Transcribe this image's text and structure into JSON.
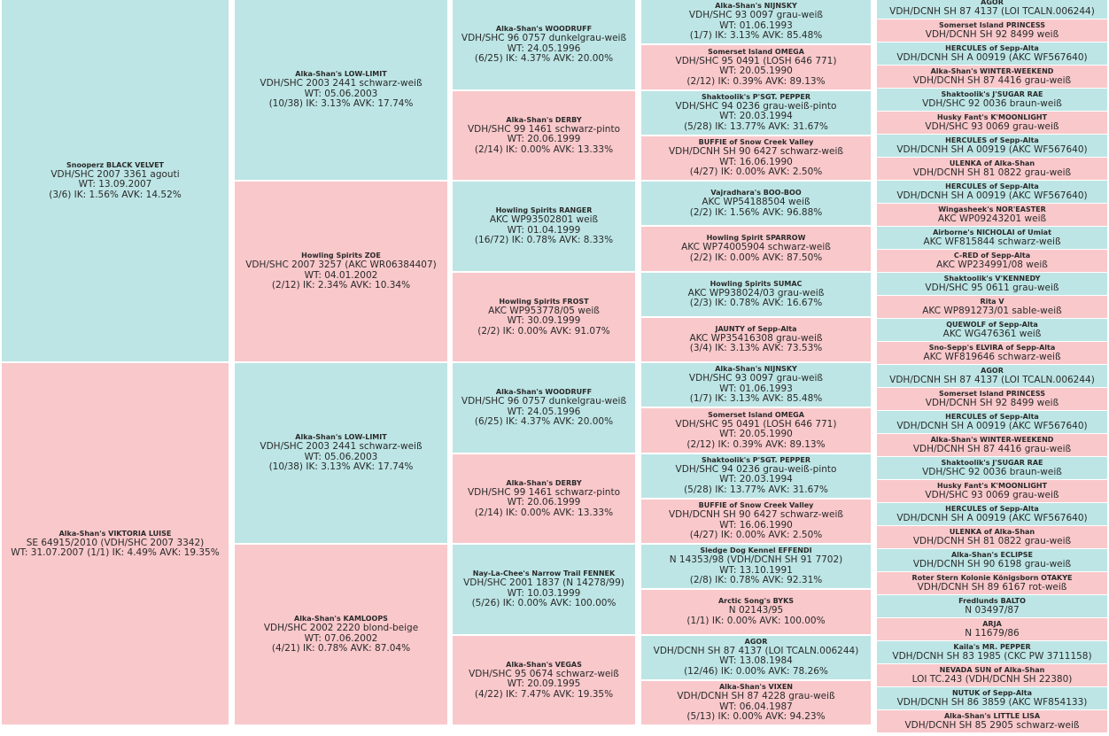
{
  "colors": {
    "male": "#bde5e5",
    "female": "#f9c8cb"
  },
  "gen0": [
    {
      "sex": "m",
      "name": "Snooperz BLACK VELVET",
      "lines": [
        "VDH/SHC 2007 3361   agouti",
        "WT: 13.09.2007",
        "(3/6) IK: 1.56%  AVK: 14.52%"
      ]
    },
    {
      "sex": "f",
      "name": "Alka-Shan's VIKTORIA LUISE",
      "lines": [
        "SE 64915/2010 (VDH/SHC 2007 3342)",
        "WT: 31.07.2007 (1/1) IK: 4.49%  AVK: 19.35%"
      ]
    }
  ],
  "gen1": [
    {
      "sex": "m",
      "name": "Alka-Shan's LOW-LIMIT",
      "lines": [
        "VDH/SHC 2003 2441   schwarz-weiß",
        "WT: 05.06.2003",
        "(10/38) IK: 3.13%  AVK: 17.74%"
      ]
    },
    {
      "sex": "f",
      "name": "Howling Spirits ZOE",
      "lines": [
        "VDH/SHC 2007 3257 (AKC WR06384407)",
        "WT: 04.01.2002",
        "(2/12) IK: 2.34%  AVK: 10.34%"
      ]
    },
    {
      "sex": "m",
      "name": "Alka-Shan's LOW-LIMIT",
      "lines": [
        "VDH/SHC 2003 2441   schwarz-weiß",
        "WT: 05.06.2003",
        "(10/38) IK: 3.13%  AVK: 17.74%"
      ]
    },
    {
      "sex": "f",
      "name": "Alka-Shan's KAMLOOPS",
      "lines": [
        "VDH/SHC 2002 2220   blond-beige",
        "WT: 07.06.2002",
        "(4/21) IK: 0.78%  AVK: 87.04%"
      ]
    }
  ],
  "gen2": [
    {
      "sex": "m",
      "name": "Alka-Shan's WOODRUFF",
      "lines": [
        "VDH/SHC 96 0757   dunkelgrau-weiß",
        "WT: 24.05.1996",
        "(6/25) IK: 4.37%  AVK: 20.00%"
      ]
    },
    {
      "sex": "f",
      "name": "Alka-Shan's DERBY",
      "lines": [
        "VDH/SHC 99 1461   schwarz-pinto",
        "WT: 20.06.1999",
        "(2/14) IK: 0.00%  AVK: 13.33%"
      ]
    },
    {
      "sex": "m",
      "name": "Howling Spirits RANGER",
      "lines": [
        "AKC WP93502801   weiß",
        "WT: 01.04.1999",
        "(16/72) IK: 0.78%  AVK: 8.33%"
      ]
    },
    {
      "sex": "f",
      "name": "Howling Spirits FROST",
      "lines": [
        "AKC WP953778/05   weiß",
        "WT: 30.09.1999",
        "(2/2) IK: 0.00%  AVK: 91.07%"
      ]
    },
    {
      "sex": "m",
      "name": "Alka-Shan's WOODRUFF",
      "lines": [
        "VDH/SHC 96 0757   dunkelgrau-weiß",
        "WT: 24.05.1996",
        "(6/25) IK: 4.37%  AVK: 20.00%"
      ]
    },
    {
      "sex": "f",
      "name": "Alka-Shan's DERBY",
      "lines": [
        "VDH/SHC 99 1461   schwarz-pinto",
        "WT: 20.06.1999",
        "(2/14) IK: 0.00%  AVK: 13.33%"
      ]
    },
    {
      "sex": "m",
      "name": "Nay-La-Chee's Narrow Trail FENNEK",
      "lines": [
        "VDH/SHC 2001 1837 (N 14278/99)",
        "WT: 10.03.1999",
        "(5/26) IK: 0.00%  AVK: 100.00%"
      ]
    },
    {
      "sex": "f",
      "name": "Alka-Shan's VEGAS",
      "lines": [
        "VDH/SHC 95 0674   schwarz-weiß",
        "WT: 20.09.1995",
        "(4/22) IK: 7.47%  AVK: 19.35%"
      ]
    }
  ],
  "gen3": [
    {
      "sex": "m",
      "name": "Alka-Shan's NIJNSKY",
      "lines": [
        "VDH/SHC 93 0097   grau-weiß",
        "WT: 01.06.1993",
        "(1/7) IK: 3.13%  AVK: 85.48%"
      ]
    },
    {
      "sex": "f",
      "name": "Somerset Island OMEGA",
      "lines": [
        "VDH/SHC 95 0491 (LOSH 646 771)",
        "WT: 20.05.1990",
        "(2/12) IK: 0.39%  AVK: 89.13%"
      ]
    },
    {
      "sex": "m",
      "name": "Shaktoolik's P'SGT. PEPPER",
      "lines": [
        "VDH/SHC 94 0236   grau-weiß-pinto",
        "WT: 20.03.1994",
        "(5/28) IK: 13.77%  AVK: 31.67%"
      ]
    },
    {
      "sex": "f",
      "name": "BUFFIE of Snow Creek Valley",
      "lines": [
        "VDH/DCNH SH 90 6427   schwarz-weiß",
        "WT: 16.06.1990",
        "(4/27) IK: 0.00%  AVK: 2.50%"
      ]
    },
    {
      "sex": "m",
      "name": "Vajradhara's BOO-BOO",
      "lines": [
        "AKC WP54188504   weiß",
        "(2/2) IK: 1.56%  AVK: 96.88%"
      ]
    },
    {
      "sex": "f",
      "name": "Howling Spirit SPARROW",
      "lines": [
        "AKC WP74005904   schwarz-weiß",
        "(2/2) IK: 0.00%  AVK: 87.50%"
      ]
    },
    {
      "sex": "m",
      "name": "Howling Spirits SUMAC",
      "lines": [
        "AKC WP938024/03   grau-weiß",
        "(2/3) IK: 0.78%  AVK: 16.67%"
      ]
    },
    {
      "sex": "f",
      "name": "JAUNTY of Sepp-Alta",
      "lines": [
        "AKC WP35416308   grau-weiß",
        "(3/4) IK: 3.13%  AVK: 73.53%"
      ]
    },
    {
      "sex": "m",
      "name": "Alka-Shan's NIJNSKY",
      "lines": [
        "VDH/SHC 93 0097   grau-weiß",
        "WT: 01.06.1993",
        "(1/7) IK: 3.13%  AVK: 85.48%"
      ]
    },
    {
      "sex": "f",
      "name": "Somerset Island OMEGA",
      "lines": [
        "VDH/SHC 95 0491 (LOSH 646 771)",
        "WT: 20.05.1990",
        "(2/12) IK: 0.39%  AVK: 89.13%"
      ]
    },
    {
      "sex": "m",
      "name": "Shaktoolik's P'SGT. PEPPER",
      "lines": [
        "VDH/SHC 94 0236   grau-weiß-pinto",
        "WT: 20.03.1994",
        "(5/28) IK: 13.77%  AVK: 31.67%"
      ]
    },
    {
      "sex": "f",
      "name": "BUFFIE of Snow Creek Valley",
      "lines": [
        "VDH/DCNH SH 90 6427   schwarz-weiß",
        "WT: 16.06.1990",
        "(4/27) IK: 0.00%  AVK: 2.50%"
      ]
    },
    {
      "sex": "m",
      "name": "Sledge Dog Kennel EFFENDI",
      "lines": [
        "N 14353/98 (VDH/DCNH SH 91 7702)",
        "WT: 13.10.1991",
        "(2/8) IK: 0.78%  AVK: 92.31%"
      ]
    },
    {
      "sex": "f",
      "name": "Arctic Song's BYKS",
      "lines": [
        "N  02143/95",
        "(1/1) IK: 0.00%  AVK: 100.00%"
      ]
    },
    {
      "sex": "m",
      "name": "AGOR",
      "lines": [
        "VDH/DCNH SH 87 4137 (LOI TCALN.006244)",
        "WT: 13.08.1984",
        "(12/46) IK: 0.00%  AVK: 78.26%"
      ]
    },
    {
      "sex": "f",
      "name": "Alka-Shan's VIXEN",
      "lines": [
        "VDH/DCNH SH 87 4228   grau-weiß",
        "WT: 06.04.1987",
        "(5/13) IK: 0.00%  AVK: 94.23%"
      ]
    }
  ],
  "gen4": [
    {
      "sex": "m",
      "name": "AGOR",
      "lines": [
        "VDH/DCNH SH 87 4137 (LOI TCALN.006244)"
      ]
    },
    {
      "sex": "f",
      "name": "Somerset Island PRINCESS",
      "lines": [
        "VDH/DCNH SH 92 8499   weiß"
      ]
    },
    {
      "sex": "m",
      "name": "HERCULES of Sepp-Alta",
      "lines": [
        "VDH/DCNH SH A 00919 (AKC WF567640)"
      ]
    },
    {
      "sex": "f",
      "name": "Alka-Shan's WINTER-WEEKEND",
      "lines": [
        "VDH/DCNH SH 87 4416   grau-weiß"
      ]
    },
    {
      "sex": "m",
      "name": "Shaktoolik's J'SUGAR RAE",
      "lines": [
        "VDH/SHC 92 0036   braun-weiß"
      ]
    },
    {
      "sex": "f",
      "name": "Husky Fant's K'MOONLIGHT",
      "lines": [
        "VDH/SHC 93 0069   grau-weiß"
      ]
    },
    {
      "sex": "m",
      "name": "HERCULES of Sepp-Alta",
      "lines": [
        "VDH/DCNH SH A 00919 (AKC WF567640)"
      ]
    },
    {
      "sex": "f",
      "name": "ULENKA of Alka-Shan",
      "lines": [
        "VDH/DCNH SH 81 0822   grau-weiß"
      ]
    },
    {
      "sex": "m",
      "name": "HERCULES of Sepp-Alta",
      "lines": [
        "VDH/DCNH SH A 00919 (AKC WF567640)"
      ]
    },
    {
      "sex": "f",
      "name": "Wingasheek's NOR'EASTER",
      "lines": [
        "AKC WP09243201   weiß"
      ]
    },
    {
      "sex": "m",
      "name": "Airborne's NICHOLAI of Umiat",
      "lines": [
        "AKC WF815844   schwarz-weiß"
      ]
    },
    {
      "sex": "f",
      "name": "C-RED of Sepp-Alta",
      "lines": [
        "AKC WP234991/08   weiß"
      ]
    },
    {
      "sex": "m",
      "name": "Shaktoolik's V'KENNEDY",
      "lines": [
        "VDH/SHC 95 0611   grau-weiß"
      ]
    },
    {
      "sex": "f",
      "name": "Rita V",
      "lines": [
        "AKC WP891273/01   sable-weiß"
      ]
    },
    {
      "sex": "m",
      "name": "QUEWOLF of Sepp-Alta",
      "lines": [
        "AKC WG476361   weiß"
      ]
    },
    {
      "sex": "f",
      "name": "Sno-Sepp's ELVIRA of Sepp-Alta",
      "lines": [
        "AKC WF819646   schwarz-weiß"
      ]
    },
    {
      "sex": "m",
      "name": "AGOR",
      "lines": [
        "VDH/DCNH SH 87 4137 (LOI TCALN.006244)"
      ]
    },
    {
      "sex": "f",
      "name": "Somerset Island PRINCESS",
      "lines": [
        "VDH/DCNH SH 92 8499   weiß"
      ]
    },
    {
      "sex": "m",
      "name": "HERCULES of Sepp-Alta",
      "lines": [
        "VDH/DCNH SH A 00919 (AKC WF567640)"
      ]
    },
    {
      "sex": "f",
      "name": "Alka-Shan's WINTER-WEEKEND",
      "lines": [
        "VDH/DCNH SH 87 4416   grau-weiß"
      ]
    },
    {
      "sex": "m",
      "name": "Shaktoolik's J'SUGAR RAE",
      "lines": [
        "VDH/SHC 92 0036   braun-weiß"
      ]
    },
    {
      "sex": "f",
      "name": "Husky Fant's K'MOONLIGHT",
      "lines": [
        "VDH/SHC 93 0069   grau-weiß"
      ]
    },
    {
      "sex": "m",
      "name": "HERCULES of Sepp-Alta",
      "lines": [
        "VDH/DCNH SH A 00919 (AKC WF567640)"
      ]
    },
    {
      "sex": "f",
      "name": "ULENKA of Alka-Shan",
      "lines": [
        "VDH/DCNH SH 81 0822   grau-weiß"
      ]
    },
    {
      "sex": "m",
      "name": "Alka-Shan's ECLIPSE",
      "lines": [
        "VDH/DCNH SH 90 6198   grau-weiß"
      ]
    },
    {
      "sex": "f",
      "name": "Roter Stern Kolonie Königsborn OTAKYE",
      "lines": [
        "VDH/DCNH SH 89 6167   rot-weiß"
      ]
    },
    {
      "sex": "m",
      "name": "Fredlunds BALTO",
      "lines": [
        "N  03497/87"
      ]
    },
    {
      "sex": "f",
      "name": "ARJA",
      "lines": [
        "N  11679/86"
      ]
    },
    {
      "sex": "m",
      "name": "Kaila's MR. PEPPER",
      "lines": [
        "VDH/DCNH SH 83 1985 (CKC PW 3711158)"
      ]
    },
    {
      "sex": "f",
      "name": "NEVADA SUN of Alka-Shan",
      "lines": [
        "LOI TC.243 (VDH/DCNH SH 22380)"
      ]
    },
    {
      "sex": "m",
      "name": "NUTUK of Sepp-Alta",
      "lines": [
        "VDH/DCNH SH 86 3859 (AKC WF854133)"
      ]
    },
    {
      "sex": "f",
      "name": "Alka-Shan's LITTLE LISA",
      "lines": [
        "VDH/DCNH SH 85 2905   schwarz-weiß"
      ]
    }
  ]
}
